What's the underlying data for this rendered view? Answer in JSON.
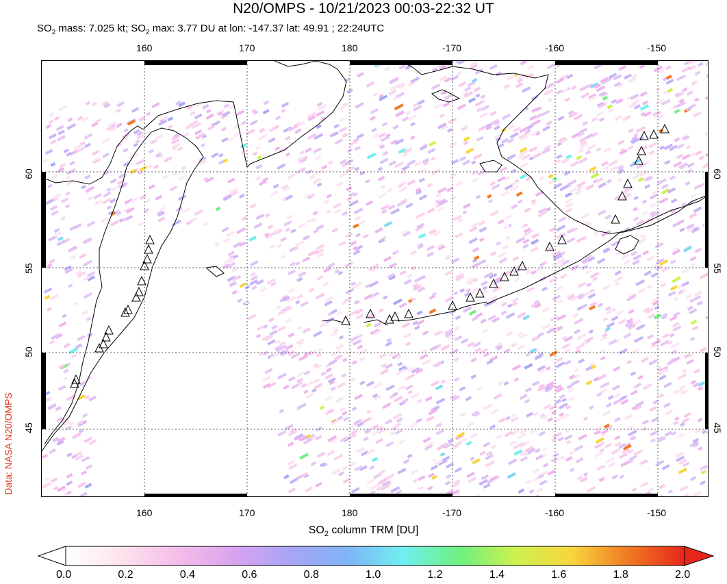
{
  "title": "N20/OMPS - 10/21/2023 00:03-22:32 UT",
  "subtitle_prefix": "SO",
  "subtitle_sub": "2",
  "subtitle_mid": " mass: 7.025 kt; SO",
  "subtitle_sub2": "2",
  "subtitle_rest": " max: 3.77 DU at lon: -147.37 lat: 49.91 ; 22:24UTC",
  "credit": "Data: NASA N20/OMPS",
  "x_ticks_top": [
    "160",
    "170",
    "180",
    "-170",
    "-160",
    "-150"
  ],
  "x_ticks_bottom": [
    "160",
    "170",
    "180",
    "-170",
    "-160",
    "-150"
  ],
  "y_ticks_left": [
    "60",
    "55",
    "50",
    "45"
  ],
  "y_ticks_right": [
    "60",
    "55",
    "50",
    "45"
  ],
  "colorbar": {
    "label_prefix": "SO",
    "label_sub": "2",
    "label_rest": " column TRM [DU]",
    "ticks": [
      "0.0",
      "0.2",
      "0.4",
      "0.6",
      "0.8",
      "1.0",
      "1.2",
      "1.4",
      "1.6",
      "1.8",
      "2.0"
    ],
    "range": [
      0,
      2
    ],
    "colors": [
      "#ffffff",
      "#fde3ee",
      "#f5bde8",
      "#d9a3f0",
      "#a9a4f6",
      "#7fb3f7",
      "#6ff0f0",
      "#6ef080",
      "#cdf24e",
      "#f8d53c",
      "#f07a22",
      "#e8261a"
    ]
  },
  "map": {
    "lon_range": [
      150,
      -145
    ],
    "lat_range": [
      40.5,
      64.5
    ],
    "grid": "dotted",
    "volcano_symbol": "triangle"
  }
}
